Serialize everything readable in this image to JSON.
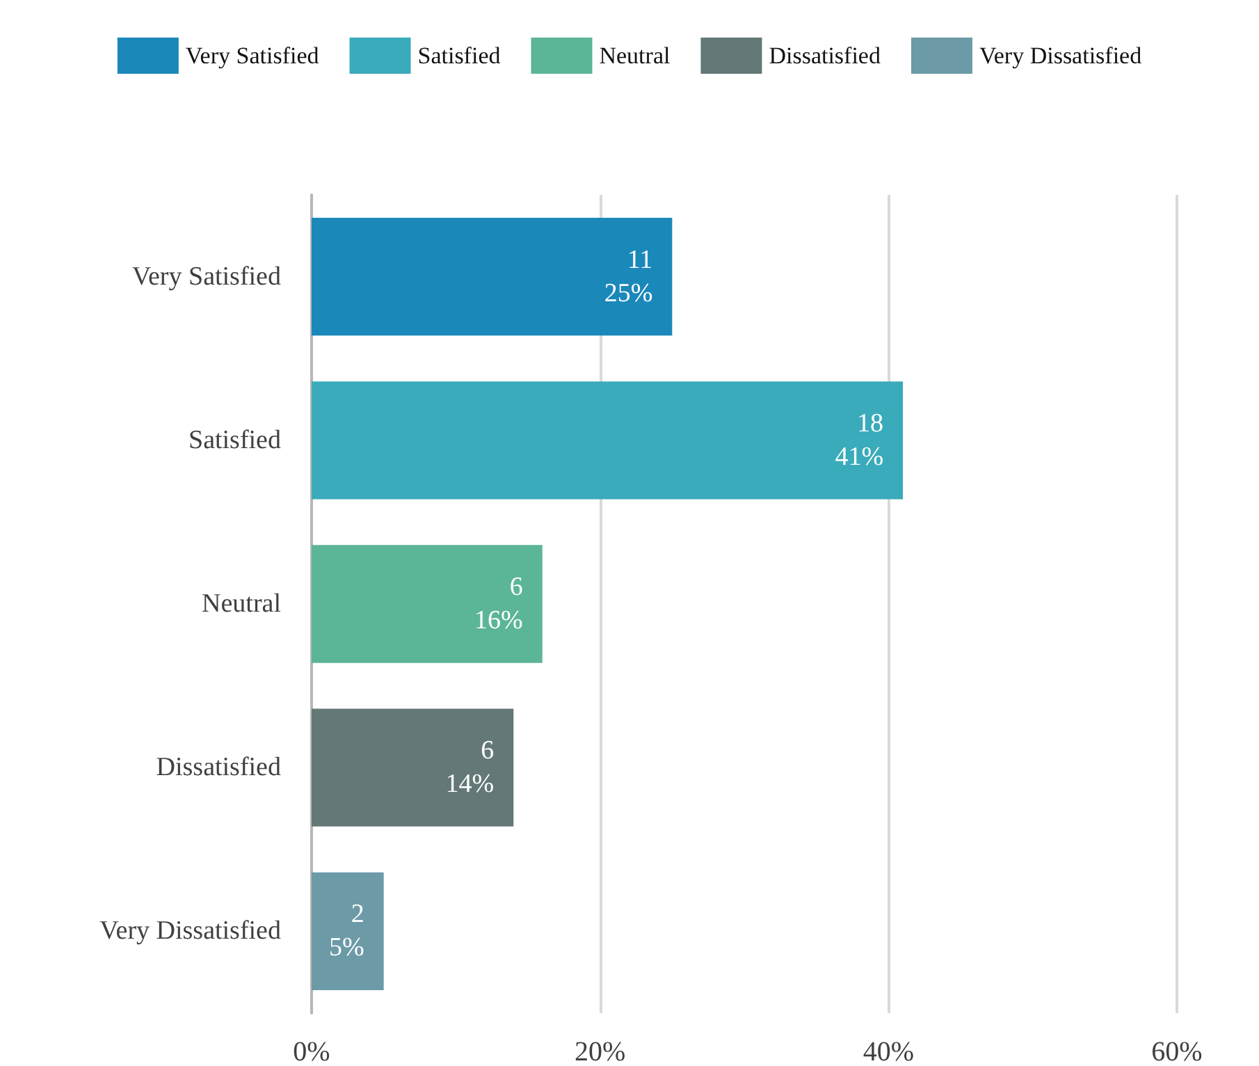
{
  "chart_data": {
    "type": "bar",
    "orientation": "horizontal",
    "stacked": true,
    "categories": [
      "Very Satisfied",
      "Satisfied",
      "Neutral",
      "Dissatisfied",
      "Very Dissatisfied"
    ],
    "series": [
      {
        "name": "Very Satisfied",
        "color": "#1b88ba",
        "values": [
          25,
          null,
          null,
          null,
          null
        ],
        "value_labels": [
          "11\n25%",
          null,
          null,
          null,
          null
        ]
      },
      {
        "name": "Satisfied",
        "color": "#3aabba",
        "values": [
          null,
          41,
          null,
          null,
          null
        ],
        "value_labels": [
          null,
          "18\n41%",
          null,
          null,
          null
        ]
      },
      {
        "name": "Neutral",
        "color": "#5bb597",
        "values": [
          null,
          null,
          16,
          null,
          null
        ],
        "value_labels": [
          null,
          null,
          "6\n16%",
          null,
          null
        ]
      },
      {
        "name": "Dissatisfied",
        "color": "#637877",
        "values": [
          null,
          null,
          null,
          14,
          null
        ],
        "value_labels": [
          null,
          null,
          null,
          "6\n14%",
          null
        ]
      },
      {
        "name": "Very Dissatisfied",
        "color": "#6c9aa7",
        "values": [
          null,
          null,
          null,
          null,
          5
        ],
        "value_labels": [
          null,
          null,
          null,
          null,
          "2\n5%"
        ]
      }
    ],
    "xlim": [
      0,
      60
    ],
    "xticks": [
      {
        "value": 0,
        "label": "0%"
      },
      {
        "value": 20,
        "label": "20%"
      },
      {
        "value": 40,
        "label": "40%"
      },
      {
        "value": 60,
        "label": "60%"
      }
    ],
    "grid": "x",
    "legend": "top"
  }
}
